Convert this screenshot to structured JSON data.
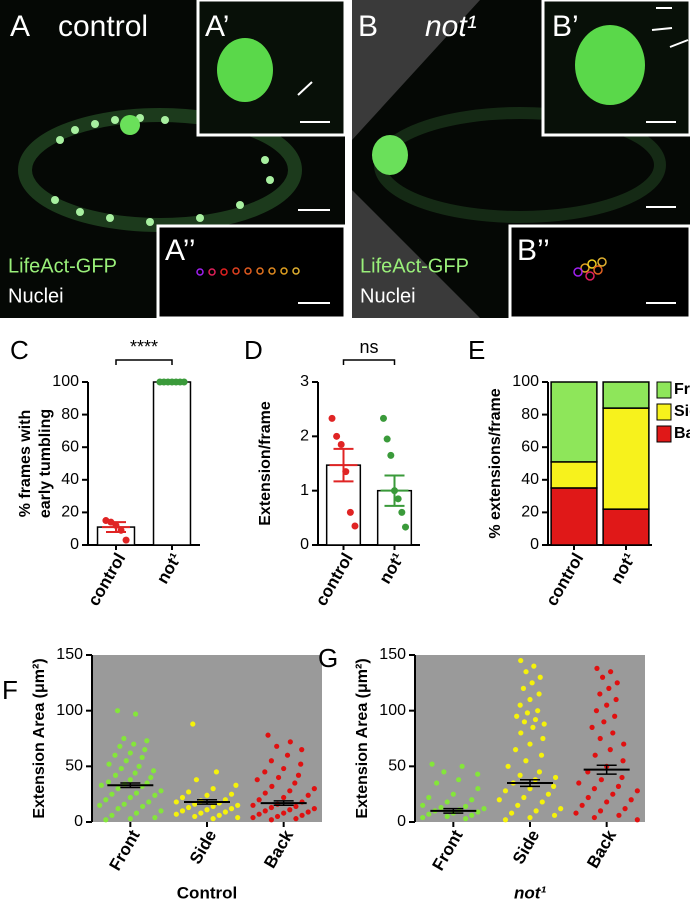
{
  "figure": {
    "panels": [
      {
        "letter": "A",
        "title": "control",
        "inset_top": "A’",
        "inset_bottom": "A’’",
        "stain_1": "LifeAct-GFP",
        "stain_2": "Nuclei"
      },
      {
        "letter": "B",
        "title": "not¹",
        "inset_top": "B’",
        "inset_bottom": "B’’",
        "stain_1": "LifeAct-GFP",
        "stain_2": "Nuclei"
      }
    ]
  },
  "chart_data": [
    {
      "type": "bar",
      "panel": "C",
      "ylabel": [
        "% frames with",
        "early tumbling"
      ],
      "categories": [
        "control",
        "not¹"
      ],
      "values": [
        11,
        100
      ],
      "errors": [
        3,
        0
      ],
      "bar_color": "#ffffff",
      "point_colors": [
        "#e02424",
        "#3a9a3a"
      ],
      "points": [
        [
          15,
          14,
          12,
          9,
          3
        ],
        [
          100,
          100,
          100,
          100,
          100,
          100,
          100
        ]
      ],
      "significance": "****",
      "ylim": [
        0,
        100
      ],
      "yticks": [
        0,
        20,
        40,
        60,
        80,
        100
      ]
    },
    {
      "type": "bar",
      "panel": "D",
      "ylabel": [
        "Extension/frame"
      ],
      "categories": [
        "control",
        "not¹"
      ],
      "values": [
        1.47,
        1.0
      ],
      "errors": [
        0.3,
        0.28
      ],
      "bar_color": "#ffffff",
      "point_colors": [
        "#e02424",
        "#3a9a3a"
      ],
      "points": [
        [
          2.33,
          2.0,
          1.85,
          1.35,
          0.6,
          0.35
        ],
        [
          2.33,
          1.95,
          1.65,
          1.0,
          0.85,
          0.6,
          0.33
        ]
      ],
      "significance": "ns",
      "ylim": [
        0,
        3
      ],
      "yticks": [
        0,
        1,
        2,
        3
      ]
    },
    {
      "type": "stacked_bar",
      "panel": "E",
      "ylabel": [
        "% extensions/frame"
      ],
      "categories": [
        "control",
        "not¹"
      ],
      "series": [
        {
          "name": "Front",
          "color": "#8ee65a",
          "values": [
            49,
            16
          ]
        },
        {
          "name": "Side",
          "color": "#f7f21c",
          "values": [
            16,
            62
          ]
        },
        {
          "name": "Back",
          "color": "#e01818",
          "values": [
            35,
            22
          ]
        }
      ],
      "ylim": [
        0,
        100
      ],
      "yticks": [
        0,
        20,
        40,
        60,
        80,
        100
      ]
    },
    {
      "type": "dot",
      "panel": "F",
      "ylabel": [
        "Extension Area (μm²)"
      ],
      "xlabel": "Control",
      "categories": [
        "Front",
        "Side",
        "Back"
      ],
      "colors": [
        "#84e63a",
        "#f5f20a",
        "#e01010"
      ],
      "background": "#9a9a9a",
      "means": [
        33,
        18,
        17
      ],
      "sem": [
        2,
        2,
        2
      ],
      "points": [
        [
          100,
          97,
          75,
          73,
          70,
          68,
          65,
          62,
          60,
          58,
          55,
          52,
          50,
          48,
          46,
          44,
          42,
          40,
          38,
          36,
          35,
          34,
          33,
          32,
          30,
          28,
          26,
          25,
          24,
          22,
          20,
          18,
          16,
          15,
          14,
          12,
          10,
          8,
          6,
          4,
          3,
          2
        ],
        [
          88,
          45,
          38,
          33,
          30,
          27,
          25,
          24,
          22,
          20,
          19,
          18,
          17,
          16,
          15,
          14,
          13,
          12,
          11,
          10,
          9,
          8,
          7,
          6,
          5,
          4,
          3
        ],
        [
          78,
          72,
          68,
          65,
          60,
          55,
          52,
          48,
          45,
          42,
          40,
          38,
          35,
          32,
          30,
          28,
          26,
          24,
          22,
          20,
          18,
          16,
          15,
          14,
          13,
          12,
          11,
          10,
          9,
          8,
          7,
          6,
          5,
          4,
          3,
          2
        ]
      ],
      "ylim": [
        0,
        150
      ],
      "yticks": [
        0,
        50,
        100,
        150
      ]
    },
    {
      "type": "dot",
      "panel": "G",
      "ylabel": [
        "Extension Area (μm²)"
      ],
      "xlabel": "not¹",
      "categories": [
        "Front",
        "Side",
        "Back"
      ],
      "colors": [
        "#84e63a",
        "#f5f20a",
        "#e01010"
      ],
      "background": "#9a9a9a",
      "means": [
        10,
        35,
        47
      ],
      "sem": [
        2,
        3,
        4
      ],
      "points": [
        [
          52,
          50,
          45,
          43,
          38,
          35,
          30,
          25,
          22,
          20,
          18,
          15,
          14,
          13,
          12,
          11,
          10,
          9,
          8,
          7,
          6,
          5,
          4,
          3
        ],
        [
          145,
          140,
          135,
          130,
          125,
          120,
          115,
          110,
          105,
          100,
          98,
          95,
          92,
          90,
          88,
          85,
          80,
          75,
          70,
          65,
          60,
          55,
          50,
          45,
          42,
          40,
          38,
          35,
          32,
          30,
          28,
          25,
          22,
          20,
          18,
          15,
          12,
          10,
          8,
          6,
          4,
          2
        ],
        [
          138,
          135,
          130,
          125,
          120,
          115,
          110,
          105,
          100,
          95,
          90,
          85,
          80,
          75,
          70,
          65,
          60,
          55,
          50,
          45,
          40,
          38,
          35,
          32,
          30,
          28,
          25,
          22,
          20,
          18,
          15,
          12,
          10,
          8,
          6,
          4,
          2
        ]
      ],
      "ylim": [
        0,
        150
      ],
      "yticks": [
        0,
        50,
        100,
        150
      ]
    }
  ]
}
